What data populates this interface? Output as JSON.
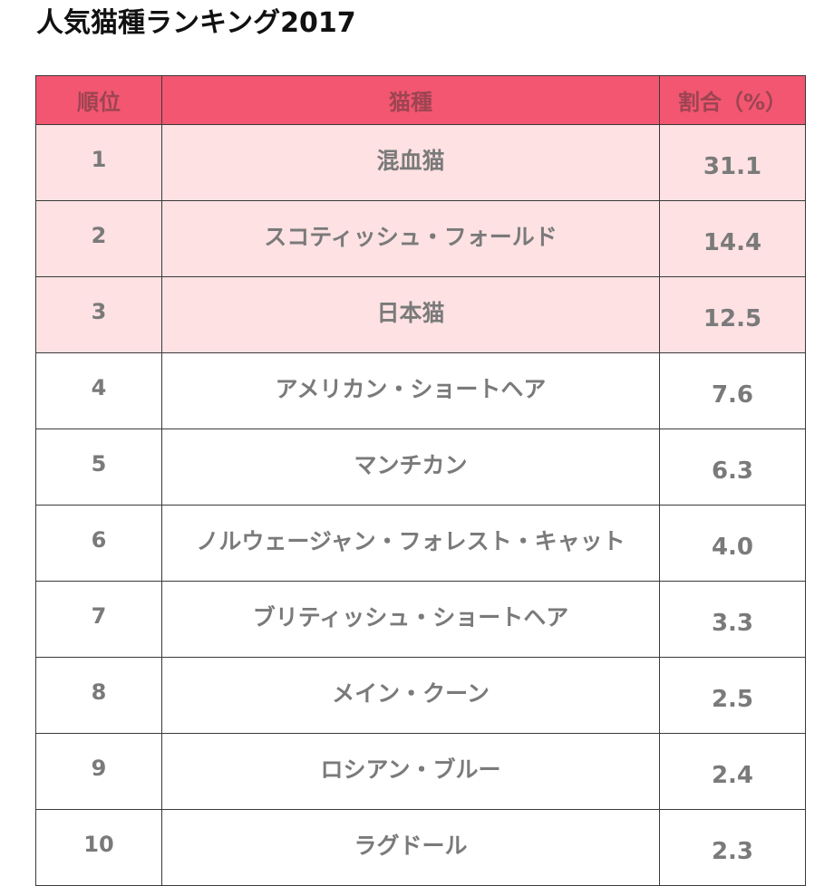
{
  "title": "人気猫種ランキング2017",
  "table": {
    "headers": {
      "rank": "順位",
      "breed": "猫種",
      "percent": "割合（%）"
    },
    "highlight_color": "#fde1e3",
    "header_color": "#f25670",
    "rows": [
      {
        "rank": "1",
        "breed": "混血猫",
        "percent": "31.1"
      },
      {
        "rank": "2",
        "breed": "スコティッシュ・フォールド",
        "percent": "14.4"
      },
      {
        "rank": "3",
        "breed": "日本猫",
        "percent": "12.5"
      },
      {
        "rank": "4",
        "breed": "アメリカン・ショートヘア",
        "percent": "7.6"
      },
      {
        "rank": "5",
        "breed": "マンチカン",
        "percent": "6.3"
      },
      {
        "rank": "6",
        "breed": "ノルウェージャン・フォレスト・キャット",
        "percent": "4.0"
      },
      {
        "rank": "7",
        "breed": "ブリティッシュ・ショートヘア",
        "percent": "3.3"
      },
      {
        "rank": "8",
        "breed": "メイン・クーン",
        "percent": "2.5"
      },
      {
        "rank": "9",
        "breed": "ロシアン・ブルー",
        "percent": "2.4"
      },
      {
        "rank": "10",
        "breed": "ラグドール",
        "percent": "2.3"
      }
    ]
  }
}
